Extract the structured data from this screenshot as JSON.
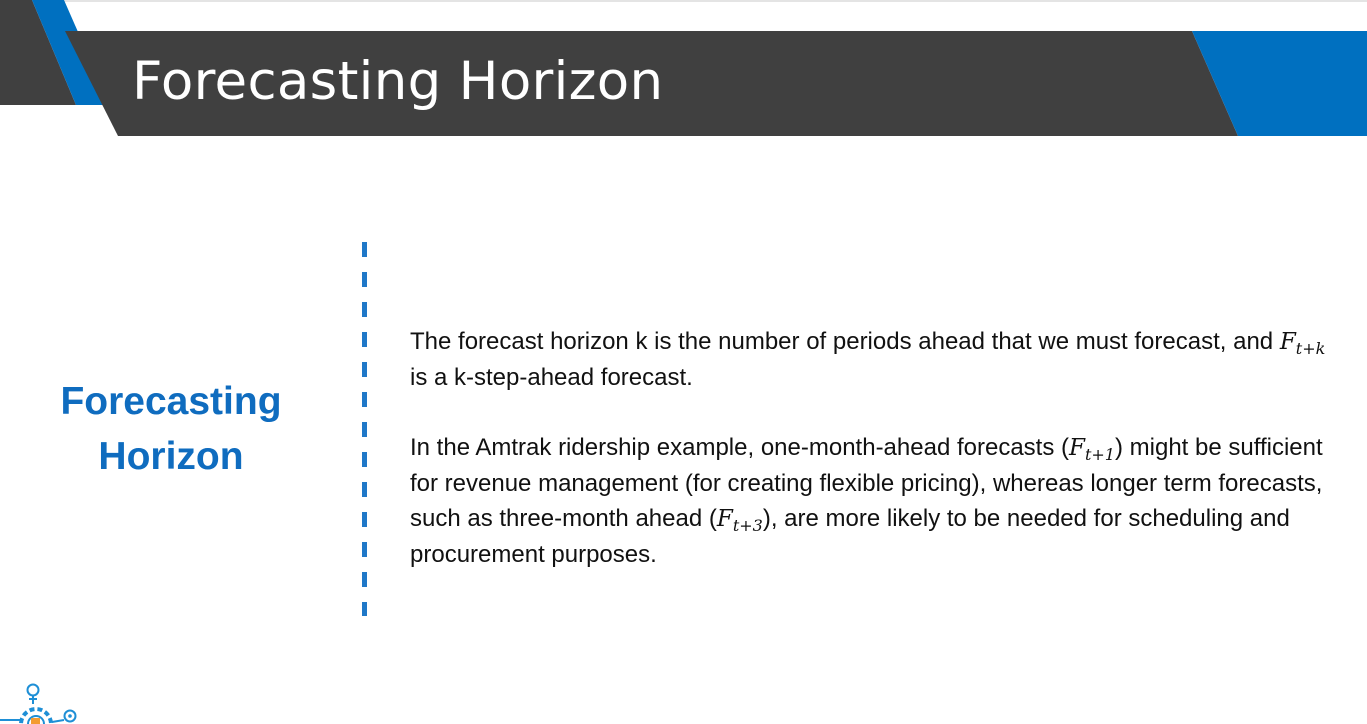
{
  "slide": {
    "title": "Forecasting Horizon",
    "side_heading": {
      "line1": "Forecasting",
      "line2": "Horizon"
    },
    "paragraph1": {
      "a": "The forecast horizon k is the number of periods ahead that we must forecast, and ",
      "math_base": "F",
      "math_sub": "t+k",
      "b": " is a k-step-ahead forecast."
    },
    "paragraph2": {
      "a": "In the Amtrak ridership example, one-month-ahead forecasts (",
      "math1_base": "F",
      "math1_sub": "t+1",
      "b": ") might be sufficient for revenue management (for creating flexible pricing), whereas longer term forecasts, such as three-month ahead (",
      "math2_base": "F",
      "math2_sub": "t+3",
      "c": "), are more likely to be needed for scheduling and procurement purposes."
    },
    "colors": {
      "banner": "#404040",
      "accent_blue": "#0070c0",
      "heading_blue": "#0f6cbf",
      "divider_blue": "#1f78c8",
      "logo_blue": "#1e8fd6",
      "logo_orange": "#f39c32"
    },
    "icons": [
      "lightbulb-icon",
      "gear-icon",
      "location-pin-icon"
    ]
  }
}
